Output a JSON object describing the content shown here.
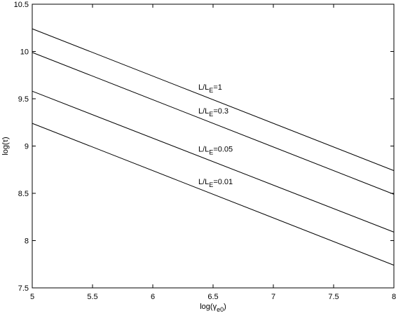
{
  "chart_data": {
    "type": "line",
    "x_label": {
      "main": "log(γ",
      "sub": "e0",
      "rest": ")"
    },
    "y_label": "log(τ)",
    "x": [
      5,
      8
    ],
    "series": [
      {
        "label": {
          "main": "L/L",
          "sub": "E",
          "rest": "=1"
        },
        "color": "#000000",
        "values": [
          10.24,
          8.74
        ]
      },
      {
        "label": {
          "main": "L/L",
          "sub": "E",
          "rest": "=0.3"
        },
        "color": "#000000",
        "values": [
          9.99,
          8.49
        ]
      },
      {
        "label": {
          "main": "L/L",
          "sub": "E",
          "rest": "=0.05"
        },
        "color": "#000000",
        "values": [
          9.58,
          8.09
        ]
      },
      {
        "label": {
          "main": "L/L",
          "sub": "E",
          "rest": "=0.01"
        },
        "color": "#000000",
        "values": [
          9.24,
          7.74
        ]
      }
    ],
    "xlim": [
      5,
      8
    ],
    "xticks": [
      5,
      5.5,
      6,
      6.5,
      7,
      7.5,
      8
    ],
    "ylim": [
      7.5,
      10.5
    ],
    "yticks": [
      7.5,
      8,
      8.5,
      9,
      9.5,
      10,
      10.5
    ],
    "grid": false
  }
}
